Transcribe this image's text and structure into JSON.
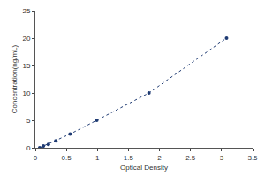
{
  "chart_data": {
    "type": "line",
    "x_label": "Optical Density",
    "y_label": "Concentration(ng/mL)",
    "x": [
      0.07,
      0.13,
      0.21,
      0.33,
      0.56,
      0.99,
      1.83,
      3.08
    ],
    "values": [
      0,
      0.3125,
      0.625,
      1.25,
      2.5,
      5,
      10,
      20
    ],
    "color": "#1f3b73",
    "marker": "circle",
    "line_style": "dotted",
    "xlim": [
      0,
      3.5
    ],
    "xticks": [
      0,
      0.5,
      1,
      1.5,
      2,
      2.5,
      3,
      3.5
    ],
    "ylim": [
      0,
      25
    ],
    "yticks": [
      0,
      5,
      10,
      15,
      20,
      25
    ],
    "grid": false
  }
}
